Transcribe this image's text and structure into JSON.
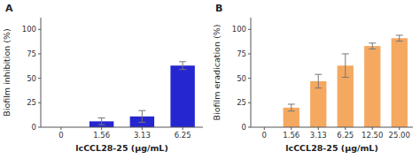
{
  "chart_data": [
    {
      "type": "bar",
      "title": "A",
      "categories": [
        "0",
        "1.56",
        "3.13",
        "6.25"
      ],
      "values": [
        null,
        6,
        11,
        63
      ],
      "errors": [
        null,
        3.5,
        6,
        4
      ],
      "color": "#2626D0",
      "x_label": "lcCCL28-25 (μg/mL)",
      "y_label": "Biofilm inhibition (%)",
      "ylim": [
        0,
        112
      ],
      "yticks": [
        0,
        25,
        50,
        75,
        100
      ],
      "grid": false
    },
    {
      "type": "bar",
      "title": "B",
      "categories": [
        "0",
        "1.56",
        "3.13",
        "6.25",
        "12.50",
        "25.00"
      ],
      "values": [
        null,
        20,
        47,
        63,
        83,
        91
      ],
      "errors": [
        null,
        3.5,
        7,
        12,
        3,
        3
      ],
      "color": "#F5A860",
      "x_label": "lcCCL28-25 (μg/mL)",
      "y_label": "Biofilm eradication (%)",
      "ylim": [
        0,
        112
      ],
      "yticks": [
        0,
        25,
        50,
        75,
        100
      ],
      "grid": false
    }
  ]
}
